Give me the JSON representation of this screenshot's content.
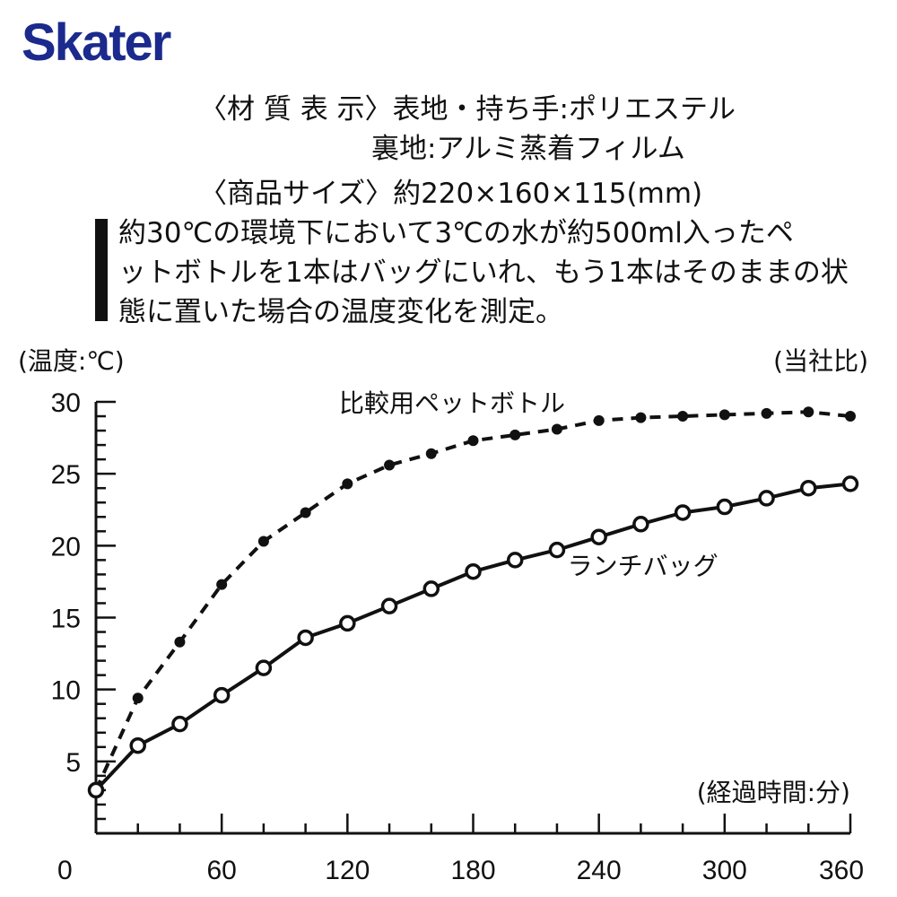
{
  "header": {
    "brand": "Skater",
    "material_label": "〈材 質 表 示〉表地・持ち手:ポリエステル",
    "material_lining": "裏地:アルミ蒸着フィルム",
    "size_label": "〈商品サイズ〉約220×160×115(mm)"
  },
  "note": {
    "line1": "約30℃の環境下において3℃の水が約500ml入ったペ",
    "line2": "ットボトルを1本はバッグにいれ、もう1本はそのままの状",
    "line3": "態に置いた場合の温度変化を測定。"
  },
  "chart_data": {
    "type": "line",
    "ylabel": "(温度:℃)",
    "xlabel": "(経過時間:分)",
    "source_note": "(当社比)",
    "xlim": [
      0,
      360
    ],
    "ylim": [
      0,
      30
    ],
    "x_tick_labels": [
      "0",
      "60",
      "120",
      "180",
      "240",
      "300",
      "360"
    ],
    "y_tick_labels": [
      "5",
      "10",
      "15",
      "20",
      "25",
      "30"
    ],
    "x": [
      0,
      20,
      40,
      60,
      80,
      100,
      120,
      140,
      160,
      180,
      200,
      220,
      240,
      260,
      280,
      300,
      320,
      340,
      360
    ],
    "series": [
      {
        "name": "比較用ペットボトル",
        "style": "dashed",
        "marker": "filled-circle",
        "color": "#111111",
        "values": [
          3.0,
          9.4,
          13.3,
          17.3,
          20.3,
          22.3,
          24.3,
          25.6,
          26.4,
          27.3,
          27.7,
          28.1,
          28.7,
          28.9,
          29.0,
          29.1,
          29.2,
          29.3,
          29.0
        ]
      },
      {
        "name": "ランチバッグ",
        "style": "solid",
        "marker": "open-circle",
        "color": "#111111",
        "values": [
          3.0,
          6.1,
          7.6,
          9.6,
          11.5,
          13.6,
          14.6,
          15.8,
          17.0,
          18.2,
          19.0,
          19.7,
          20.6,
          21.5,
          22.3,
          22.7,
          23.3,
          24.0,
          24.3
        ]
      }
    ]
  }
}
